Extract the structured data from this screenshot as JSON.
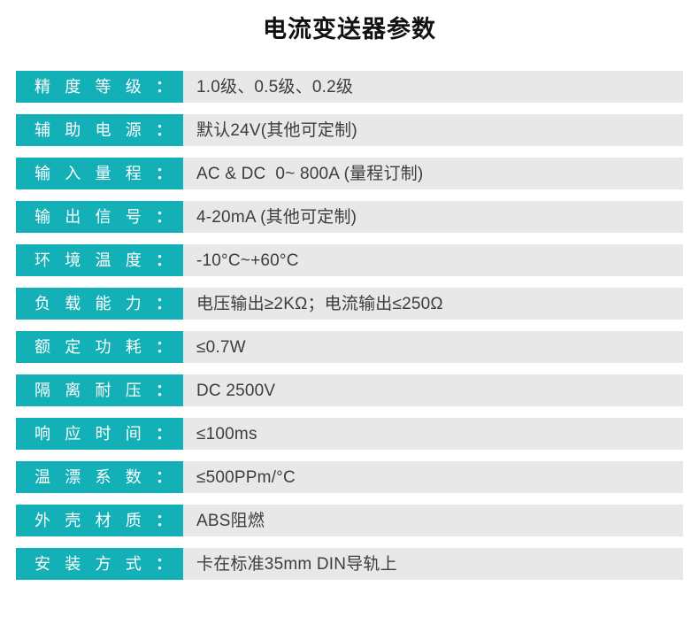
{
  "title": "电流变送器参数",
  "label_separator": "：",
  "colors": {
    "accent": "#14b0b8",
    "row_background": "#e8e8e8",
    "value_text": "#3d3d3d",
    "label_text": "#ffffff",
    "title_text": "#111111"
  },
  "rows": [
    {
      "label": "精度等级",
      "value": "1.0级、0.5级、0.2级"
    },
    {
      "label": "辅助电源",
      "value": "默认24V(其他可定制)"
    },
    {
      "label": "输入量程",
      "value": "AC & DC  0~ 800A (量程订制)"
    },
    {
      "label": "输出信号",
      "value": "4-20mA (其他可定制)"
    },
    {
      "label": "环境温度",
      "value": "-10°C~+60°C"
    },
    {
      "label": "负载能力",
      "value": "电压输出≥2KΩ；电流输出≤250Ω"
    },
    {
      "label": "额定功耗",
      "value": "≤0.7W"
    },
    {
      "label": "隔离耐压",
      "value": "DC 2500V"
    },
    {
      "label": "响应时间",
      "value": "≤100ms"
    },
    {
      "label": "温漂系数",
      "value": "≤500PPm/°C"
    },
    {
      "label": "外壳材质",
      "value": "ABS阻燃"
    },
    {
      "label": "安装方式",
      "value": "卡在标准35mm DIN导轨上"
    }
  ]
}
